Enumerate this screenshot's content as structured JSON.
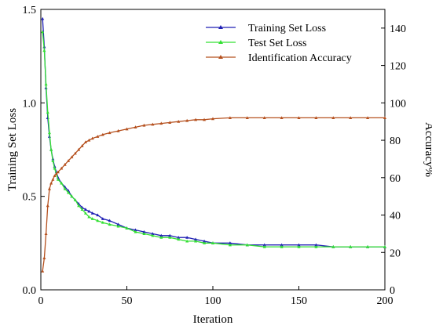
{
  "chart_data": {
    "type": "line",
    "xlabel": "Iteration",
    "ylabel_left": "Training Set Loss",
    "ylabel_right": "Accuracy%",
    "xlim": [
      0,
      200
    ],
    "ylim_left": [
      0.0,
      1.5
    ],
    "ylim_right": [
      0,
      150
    ],
    "x_ticks": [
      "0",
      "50",
      "100",
      "150",
      "200"
    ],
    "y_left_ticks": [
      "0.0",
      "0.5",
      "1.0",
      "1.5"
    ],
    "y_right_ticks": [
      "0",
      "20",
      "40",
      "60",
      "80",
      "100",
      "120",
      "140"
    ],
    "grid": false,
    "legend_position": "top-right",
    "series": [
      {
        "name": "Training Set Loss",
        "axis": "left",
        "color": "#1f1fb4",
        "marker": "triangle",
        "x": [
          1,
          2,
          3,
          4,
          5,
          6,
          7,
          8,
          9,
          10,
          12,
          14,
          16,
          18,
          20,
          22,
          24,
          26,
          28,
          30,
          33,
          36,
          40,
          45,
          50,
          55,
          60,
          65,
          70,
          75,
          80,
          85,
          90,
          95,
          100,
          110,
          120,
          130,
          140,
          150,
          160,
          170,
          180,
          190,
          200
        ],
        "y": [
          1.45,
          1.3,
          1.08,
          0.92,
          0.82,
          0.75,
          0.7,
          0.66,
          0.63,
          0.6,
          0.57,
          0.55,
          0.53,
          0.5,
          0.48,
          0.46,
          0.44,
          0.43,
          0.42,
          0.41,
          0.4,
          0.38,
          0.37,
          0.35,
          0.33,
          0.32,
          0.31,
          0.3,
          0.29,
          0.29,
          0.28,
          0.28,
          0.27,
          0.26,
          0.25,
          0.25,
          0.24,
          0.24,
          0.24,
          0.24,
          0.24,
          0.23,
          0.23,
          0.23,
          0.23
        ]
      },
      {
        "name": "Test Set Loss",
        "axis": "left",
        "color": "#33e033",
        "marker": "triangle",
        "x": [
          1,
          2,
          3,
          4,
          5,
          6,
          7,
          8,
          9,
          10,
          12,
          14,
          16,
          18,
          20,
          22,
          24,
          26,
          28,
          30,
          33,
          36,
          40,
          45,
          50,
          55,
          60,
          65,
          70,
          75,
          80,
          85,
          90,
          95,
          100,
          110,
          120,
          130,
          140,
          150,
          160,
          170,
          180,
          190,
          200
        ],
        "y": [
          1.38,
          1.28,
          1.1,
          0.95,
          0.84,
          0.75,
          0.69,
          0.65,
          0.62,
          0.59,
          0.57,
          0.54,
          0.52,
          0.5,
          0.48,
          0.45,
          0.43,
          0.41,
          0.39,
          0.38,
          0.37,
          0.36,
          0.35,
          0.34,
          0.33,
          0.31,
          0.3,
          0.29,
          0.28,
          0.28,
          0.27,
          0.26,
          0.26,
          0.25,
          0.25,
          0.24,
          0.24,
          0.23,
          0.23,
          0.23,
          0.23,
          0.23,
          0.23,
          0.23,
          0.23
        ]
      },
      {
        "name": "Identification Accuracy",
        "axis": "right",
        "color": "#b5501e",
        "marker": "triangle",
        "x": [
          1,
          2,
          3,
          4,
          5,
          6,
          7,
          8,
          9,
          10,
          12,
          14,
          16,
          18,
          20,
          22,
          24,
          26,
          28,
          30,
          33,
          36,
          40,
          45,
          50,
          55,
          60,
          65,
          70,
          75,
          80,
          85,
          90,
          95,
          100,
          110,
          120,
          130,
          140,
          150,
          160,
          170,
          180,
          190,
          200
        ],
        "y": [
          10,
          17,
          30,
          45,
          54,
          57,
          59,
          61,
          62,
          63,
          65,
          67,
          69,
          71,
          73,
          75,
          77,
          79,
          80,
          81,
          82,
          83,
          84,
          85,
          86,
          87,
          88,
          88.5,
          89,
          89.5,
          90,
          90.5,
          91,
          91,
          91.5,
          92,
          92,
          92,
          92,
          92,
          92,
          92,
          92,
          92,
          92
        ]
      }
    ]
  }
}
